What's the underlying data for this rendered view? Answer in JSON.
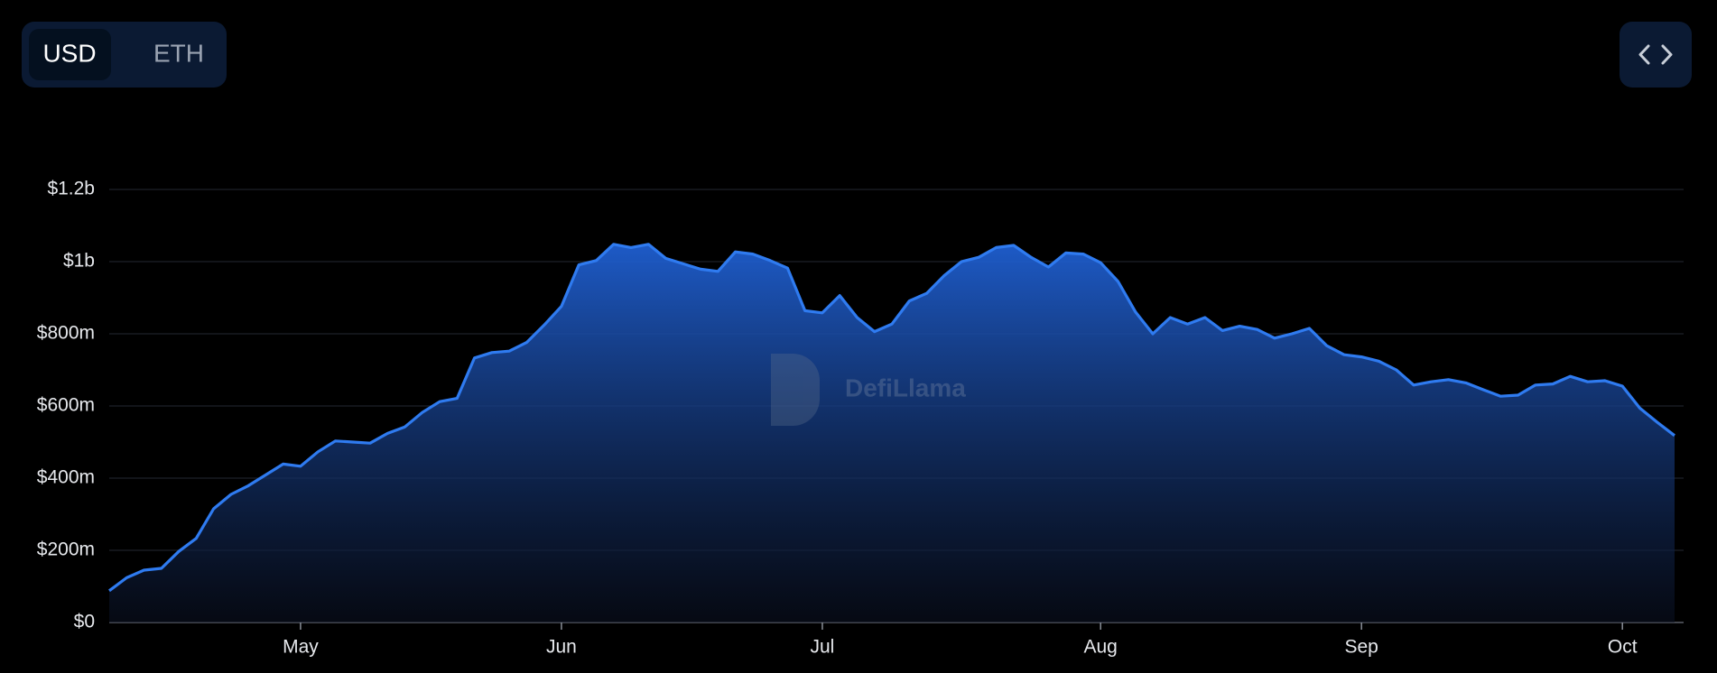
{
  "toggle": {
    "options": [
      "USD",
      "ETH"
    ],
    "selected": 0
  },
  "watermark": "DefiLlama",
  "chart_data": {
    "type": "area",
    "color": "#2f7bf0",
    "grid": true,
    "categories": [
      null,
      null,
      null,
      null,
      null,
      null,
      null,
      null,
      null,
      null,
      null,
      "May",
      null,
      null,
      null,
      null,
      null,
      null,
      null,
      null,
      null,
      null,
      null,
      null,
      null,
      null,
      "Jun",
      null,
      null,
      null,
      null,
      null,
      null,
      null,
      null,
      null,
      null,
      null,
      null,
      null,
      null,
      "Jul",
      null,
      null,
      null,
      null,
      null,
      null,
      null,
      null,
      null,
      null,
      null,
      null,
      null,
      null,
      null,
      "Aug",
      null,
      null,
      null,
      null,
      null,
      null,
      null,
      null,
      null,
      null,
      null,
      null,
      null,
      null,
      "Sep",
      null,
      null,
      null,
      null,
      null,
      null,
      null,
      null,
      null,
      null,
      null,
      null,
      null,
      null,
      "Oct",
      null,
      null,
      null
    ],
    "values": [
      88000000,
      124000000,
      145000000,
      150000000,
      197000000,
      233000000,
      315000000,
      355000000,
      379000000,
      409000000,
      439000000,
      433000000,
      473000000,
      503000000,
      500000000,
      497000000,
      524000000,
      542000000,
      582000000,
      612000000,
      621000000,
      733000000,
      748000000,
      752000000,
      776000000,
      824000000,
      876000000,
      991000000,
      1003000000,
      1048000000,
      1039000000,
      1048000000,
      1009000000,
      994000000,
      979000000,
      973000000,
      1027000000,
      1021000000,
      1003000000,
      982000000,
      864000000,
      858000000,
      906000000,
      845000000,
      806000000,
      827000000,
      891000000,
      912000000,
      961000000,
      1000000000,
      1012000000,
      1039000000,
      1045000000,
      1012000000,
      985000000,
      1024000000,
      1021000000,
      997000000,
      945000000,
      861000000,
      800000000,
      845000000,
      827000000,
      845000000,
      809000000,
      821000000,
      812000000,
      788000000,
      800000000,
      815000000,
      767000000,
      742000000,
      736000000,
      724000000,
      700000000,
      658000000,
      667000000,
      673000000,
      664000000,
      645000000,
      627000000,
      630000000,
      658000000,
      661000000,
      682000000,
      667000000,
      670000000,
      655000000,
      594000000,
      555000000,
      518000000
    ],
    "ylim": [
      0,
      1200000000
    ],
    "yticks": [
      {
        "value": 0,
        "label": "$0"
      },
      {
        "value": 200000000,
        "label": "$200m"
      },
      {
        "value": 400000000,
        "label": "$400m"
      },
      {
        "value": 600000000,
        "label": "$600m"
      },
      {
        "value": 800000000,
        "label": "$800m"
      },
      {
        "value": 1000000000,
        "label": "$1b"
      },
      {
        "value": 1200000000,
        "label": "$1.2b"
      }
    ]
  }
}
